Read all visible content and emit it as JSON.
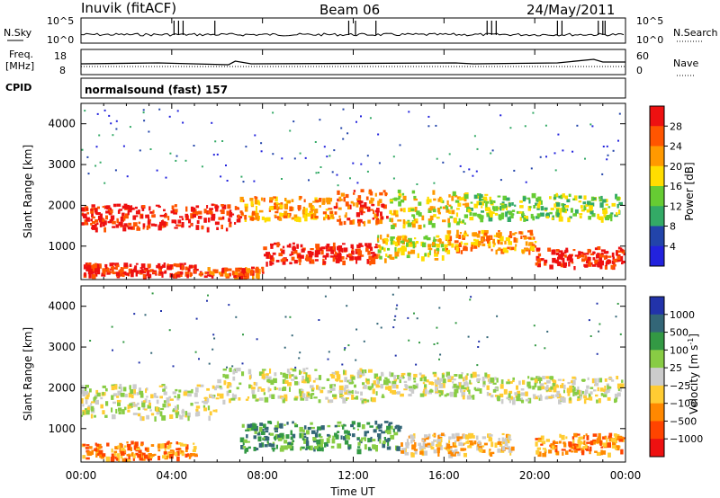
{
  "header": {
    "title": "Inuvik (fitACF)",
    "beam": "Beam 06",
    "date": "24/May/2011"
  },
  "noise_panel": {
    "left_label": "N.Sky",
    "right_label": "N.Search",
    "yticks": [
      "10^5",
      "10^0"
    ]
  },
  "freq_panel": {
    "left_label_1": "Freq.",
    "left_label_2": "[MHz]",
    "right_label": "Nave",
    "left_ticks": [
      "18",
      "8"
    ],
    "right_ticks": [
      "60",
      "0"
    ]
  },
  "cpid": {
    "label": "CPID",
    "text": "normalsound (fast) 157"
  },
  "power_panel": {
    "ylabel": "Slant Range [km]",
    "yticks": [
      "4000",
      "3000",
      "2000",
      "1000"
    ],
    "colorbar_label": "Power [dB]",
    "colorbar_ticks": [
      "28",
      "24",
      "20",
      "16",
      "12",
      "8",
      "4"
    ],
    "colors": [
      "#2222dd",
      "#2244aa",
      "#33aa66",
      "#66cc33",
      "#ffdd00",
      "#ff9900",
      "#ff5500",
      "#ee1111"
    ]
  },
  "velocity_panel": {
    "ylabel": "Slant Range [km]",
    "yticks": [
      "4000",
      "3000",
      "2000",
      "1000"
    ],
    "colorbar_label": "Velocity [m s",
    "colorbar_label_sup": "-1",
    "colorbar_label_end": "]",
    "colorbar_ticks": [
      "1000",
      "500",
      "100",
      "25",
      "−25",
      "−100",
      "−500",
      "−1000"
    ],
    "colors": [
      "#2233aa",
      "#336677",
      "#339944",
      "#88cc44",
      "#cccccc",
      "#ffcc33",
      "#ff8800",
      "#ff4400",
      "#ee1111"
    ]
  },
  "xaxis": {
    "label": "Time UT",
    "ticks": [
      "00:00",
      "04:00",
      "08:00",
      "12:00",
      "16:00",
      "20:00",
      "00:00"
    ]
  },
  "chart_data": {
    "type": "heatmap",
    "title": "Inuvik (fitACF)",
    "subtitle": "Beam 06",
    "date": "24/May/2011",
    "x_range_hours": [
      0,
      24
    ],
    "y_range_km": [
      180,
      4500
    ],
    "power_colorbar_range_db": [
      0,
      32
    ],
    "velocity_colorbar_range": [
      -1000,
      1000
    ],
    "power_bands": [
      {
        "t0": 0,
        "t1": 7,
        "r0": 1450,
        "r1": 2050,
        "level": 7
      },
      {
        "t0": 7,
        "t1": 11,
        "r0": 1700,
        "r1": 2250,
        "level": 5
      },
      {
        "t0": 11,
        "t1": 13.5,
        "r0": 1600,
        "r1": 2400,
        "level": 6
      },
      {
        "t0": 13.5,
        "t1": 17,
        "r0": 1500,
        "r1": 2400,
        "level": 4
      },
      {
        "t0": 17,
        "t1": 24,
        "r0": 1700,
        "r1": 2300,
        "level": 3
      },
      {
        "t0": 0,
        "t1": 5,
        "r0": 300,
        "r1": 600,
        "level": 7
      },
      {
        "t0": 5,
        "t1": 8,
        "r0": 200,
        "r1": 500,
        "level": 6
      },
      {
        "t0": 8,
        "t1": 13,
        "r0": 600,
        "r1": 1100,
        "level": 7
      },
      {
        "t0": 13,
        "t1": 16,
        "r0": 700,
        "r1": 1300,
        "level": 4
      },
      {
        "t0": 16,
        "t1": 20,
        "r0": 900,
        "r1": 1400,
        "level": 5
      },
      {
        "t0": 20,
        "t1": 24,
        "r0": 500,
        "r1": 1000,
        "level": 7
      }
    ],
    "velocity_bands": [
      {
        "t0": 0,
        "t1": 6,
        "r0": 1300,
        "r1": 2100,
        "level": 4
      },
      {
        "t0": 6,
        "t1": 13,
        "r0": 1700,
        "r1": 2500,
        "level": 4
      },
      {
        "t0": 13,
        "t1": 18,
        "r0": 1800,
        "r1": 2400,
        "level": 4
      },
      {
        "t0": 18,
        "t1": 24,
        "r0": 1700,
        "r1": 2300,
        "level": 4
      },
      {
        "t0": 0,
        "t1": 5,
        "r0": 200,
        "r1": 700,
        "level": 6
      },
      {
        "t0": 7,
        "t1": 14,
        "r0": 500,
        "r1": 1200,
        "level": 2
      },
      {
        "t0": 14,
        "t1": 19,
        "r0": 400,
        "r1": 900,
        "level": 5
      },
      {
        "t0": 20,
        "t1": 24,
        "r0": 400,
        "r1": 900,
        "level": 6
      }
    ]
  }
}
